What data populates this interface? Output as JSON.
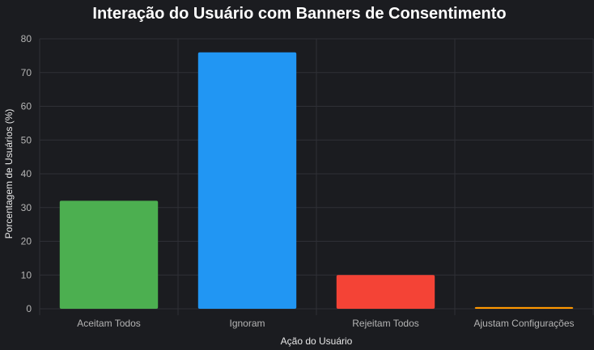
{
  "chart_data": {
    "type": "bar",
    "title": "Interação do Usuário com Banners de Consentimento",
    "xlabel": "Ação do Usuário",
    "ylabel": "Porcentagem de Usuários (%)",
    "categories": [
      "Aceitam Todos",
      "Ignoram",
      "Rejeitam Todos",
      "Ajustam Configurações"
    ],
    "values": [
      32,
      76,
      10,
      0.5
    ],
    "colors": [
      "#4caf50",
      "#2196f3",
      "#f44336",
      "#ff9800"
    ],
    "ylim": [
      0,
      80
    ],
    "yticks": [
      0,
      10,
      20,
      30,
      40,
      50,
      60,
      70,
      80
    ],
    "grid": true,
    "legend": "none"
  },
  "theme": {
    "background": "#1b1c20",
    "grid_color": "#2f3036",
    "text_color": "#ffffff",
    "tick_color": "#b4b4b4"
  }
}
